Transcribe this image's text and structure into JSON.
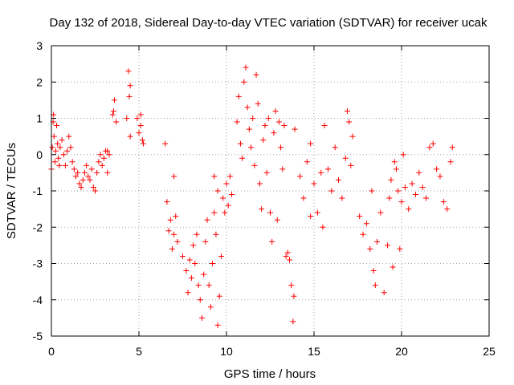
{
  "chart_data": {
    "type": "scatter",
    "title": "Day 132 of 2018, Sidereal Day-to-day VTEC variation (SDTVAR) for receiver ucak",
    "xlabel": "GPS time / hours",
    "ylabel": "SDTVAR / TECUs",
    "xlim": [
      0,
      25
    ],
    "ylim": [
      -5,
      3
    ],
    "xticks": [
      0,
      5,
      10,
      15,
      20,
      25
    ],
    "yticks": [
      -5,
      -4,
      -3,
      -2,
      -1,
      0,
      1,
      2,
      3
    ],
    "grid": true,
    "marker": "+",
    "color": "#ff0000",
    "series": [
      {
        "name": "SDTVAR",
        "points": [
          [
            0.0,
            -0.4
          ],
          [
            0.05,
            0.2
          ],
          [
            0.1,
            0.9
          ],
          [
            0.12,
            1.1
          ],
          [
            0.15,
            0.5
          ],
          [
            0.2,
            -0.2
          ],
          [
            0.25,
            0.1
          ],
          [
            0.3,
            0.8
          ],
          [
            0.35,
            0.3
          ],
          [
            0.4,
            -0.1
          ],
          [
            0.45,
            -0.3
          ],
          [
            0.5,
            0.2
          ],
          [
            0.6,
            0.4
          ],
          [
            0.7,
            0.0
          ],
          [
            0.8,
            -0.3
          ],
          [
            0.9,
            0.1
          ],
          [
            1.0,
            0.5
          ],
          [
            1.1,
            0.2
          ],
          [
            1.2,
            -0.2
          ],
          [
            1.3,
            -0.4
          ],
          [
            1.4,
            -0.6
          ],
          [
            1.5,
            -0.5
          ],
          [
            1.6,
            -0.8
          ],
          [
            1.7,
            -0.9
          ],
          [
            1.8,
            -0.7
          ],
          [
            1.9,
            -0.5
          ],
          [
            2.0,
            -0.3
          ],
          [
            2.1,
            -0.6
          ],
          [
            2.2,
            -0.7
          ],
          [
            2.3,
            -0.4
          ],
          [
            2.4,
            -0.9
          ],
          [
            2.5,
            -1.0
          ],
          [
            2.6,
            -0.5
          ],
          [
            2.7,
            -0.2
          ],
          [
            2.8,
            0.0
          ],
          [
            2.9,
            -0.3
          ],
          [
            3.0,
            -0.1
          ],
          [
            3.1,
            0.1
          ],
          [
            3.2,
            -0.5
          ],
          [
            3.3,
            0.0
          ],
          [
            3.2,
            0.1
          ],
          [
            3.5,
            1.1
          ],
          [
            3.6,
            1.5
          ],
          [
            3.7,
            0.9
          ],
          [
            3.55,
            1.2
          ],
          [
            4.3,
            1.0
          ],
          [
            4.4,
            2.3
          ],
          [
            4.45,
            1.6
          ],
          [
            4.5,
            0.5
          ],
          [
            4.5,
            1.9
          ],
          [
            4.9,
            1.0
          ],
          [
            5.0,
            0.6
          ],
          [
            5.1,
            0.8
          ],
          [
            5.2,
            0.4
          ],
          [
            5.25,
            0.3
          ],
          [
            5.1,
            1.1
          ],
          [
            6.5,
            0.3
          ],
          [
            6.6,
            -1.3
          ],
          [
            6.7,
            -2.1
          ],
          [
            6.8,
            -1.8
          ],
          [
            6.9,
            -2.6
          ],
          [
            7.0,
            -2.2
          ],
          [
            7.1,
            -1.7
          ],
          [
            7.2,
            -2.4
          ],
          [
            7.0,
            -0.6
          ],
          [
            7.5,
            -2.8
          ],
          [
            7.7,
            -3.2
          ],
          [
            7.8,
            -3.8
          ],
          [
            7.9,
            -2.9
          ],
          [
            8.0,
            -3.4
          ],
          [
            8.1,
            -2.5
          ],
          [
            8.2,
            -3.0
          ],
          [
            8.3,
            -2.2
          ],
          [
            8.4,
            -3.6
          ],
          [
            8.5,
            -4.0
          ],
          [
            8.6,
            -4.5
          ],
          [
            8.7,
            -3.3
          ],
          [
            8.8,
            -2.4
          ],
          [
            8.9,
            -1.8
          ],
          [
            9.0,
            -3.6
          ],
          [
            9.1,
            -4.2
          ],
          [
            9.2,
            -3.0
          ],
          [
            9.3,
            -1.6
          ],
          [
            9.4,
            -2.2
          ],
          [
            9.5,
            -4.7
          ],
          [
            9.6,
            -3.9
          ],
          [
            9.7,
            -2.8
          ],
          [
            9.8,
            -1.2
          ],
          [
            9.9,
            -1.6
          ],
          [
            10.0,
            -0.8
          ],
          [
            10.1,
            -1.4
          ],
          [
            10.2,
            -0.6
          ],
          [
            10.3,
            -1.1
          ],
          [
            9.5,
            -1.0
          ],
          [
            9.3,
            -0.6
          ],
          [
            10.6,
            0.9
          ],
          [
            10.7,
            1.6
          ],
          [
            10.8,
            0.3
          ],
          [
            10.9,
            -0.1
          ],
          [
            11.0,
            2.0
          ],
          [
            11.1,
            2.4
          ],
          [
            11.2,
            1.3
          ],
          [
            11.3,
            0.7
          ],
          [
            11.4,
            0.2
          ],
          [
            11.5,
            1.0
          ],
          [
            11.6,
            -0.3
          ],
          [
            11.7,
            2.2
          ],
          [
            11.8,
            1.4
          ],
          [
            11.9,
            -0.8
          ],
          [
            12.0,
            -1.5
          ],
          [
            12.1,
            0.4
          ],
          [
            12.2,
            0.8
          ],
          [
            12.3,
            -0.5
          ],
          [
            12.4,
            1.0
          ],
          [
            12.5,
            -1.6
          ],
          [
            12.6,
            -2.4
          ],
          [
            12.7,
            0.6
          ],
          [
            12.8,
            1.2
          ],
          [
            12.9,
            -1.8
          ],
          [
            13.0,
            0.9
          ],
          [
            13.1,
            0.2
          ],
          [
            13.2,
            -0.4
          ],
          [
            13.3,
            0.8
          ],
          [
            13.4,
            -2.8
          ],
          [
            13.5,
            -2.7
          ],
          [
            13.6,
            -2.9
          ],
          [
            13.7,
            -3.6
          ],
          [
            13.8,
            -4.6
          ],
          [
            13.85,
            -3.9
          ],
          [
            13.9,
            0.7
          ],
          [
            14.2,
            -0.6
          ],
          [
            14.4,
            -1.2
          ],
          [
            14.6,
            -0.2
          ],
          [
            14.8,
            0.3
          ],
          [
            15.0,
            -0.8
          ],
          [
            15.2,
            -1.6
          ],
          [
            15.4,
            -0.5
          ],
          [
            15.6,
            0.8
          ],
          [
            15.8,
            -0.4
          ],
          [
            16.0,
            -1.0
          ],
          [
            16.2,
            0.2
          ],
          [
            16.4,
            -0.7
          ],
          [
            16.6,
            -1.2
          ],
          [
            16.8,
            -0.1
          ],
          [
            17.0,
            0.9
          ],
          [
            17.1,
            -0.3
          ],
          [
            17.2,
            0.5
          ],
          [
            16.9,
            1.2
          ],
          [
            15.5,
            -2.0
          ],
          [
            14.8,
            -1.7
          ],
          [
            17.6,
            -1.7
          ],
          [
            17.8,
            -2.2
          ],
          [
            18.0,
            -1.9
          ],
          [
            18.2,
            -2.6
          ],
          [
            18.4,
            -3.2
          ],
          [
            18.5,
            -3.6
          ],
          [
            18.6,
            -2.4
          ],
          [
            18.8,
            -1.6
          ],
          [
            19.0,
            -3.8
          ],
          [
            19.2,
            -2.5
          ],
          [
            19.3,
            -1.2
          ],
          [
            19.4,
            -0.7
          ],
          [
            19.6,
            -0.2
          ],
          [
            19.8,
            -1.0
          ],
          [
            20.0,
            -1.3
          ],
          [
            20.2,
            -0.9
          ],
          [
            20.4,
            -1.5
          ],
          [
            20.6,
            -0.8
          ],
          [
            20.8,
            -1.1
          ],
          [
            21.0,
            -0.5
          ],
          [
            21.2,
            -0.9
          ],
          [
            21.4,
            -1.2
          ],
          [
            21.6,
            0.2
          ],
          [
            21.8,
            0.3
          ],
          [
            22.0,
            -0.4
          ],
          [
            22.2,
            -0.6
          ],
          [
            22.4,
            -1.3
          ],
          [
            22.6,
            -1.5
          ],
          [
            22.8,
            -0.2
          ],
          [
            22.9,
            0.2
          ],
          [
            19.5,
            -3.1
          ],
          [
            19.9,
            -2.6
          ],
          [
            20.1,
            0.0
          ],
          [
            18.3,
            -1.0
          ],
          [
            19.7,
            -0.4
          ]
        ]
      }
    ]
  }
}
